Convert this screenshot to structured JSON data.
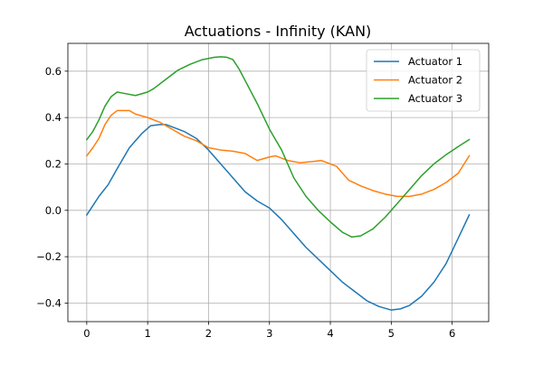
{
  "chart_data": {
    "type": "line",
    "title": "Actuations - Infinity (KAN)",
    "xlabel": "",
    "ylabel": "",
    "xlim": [
      -0.31,
      6.6
    ],
    "ylim": [
      -0.48,
      0.72
    ],
    "xticks": [
      0,
      1,
      2,
      3,
      4,
      5,
      6
    ],
    "xtick_labels": [
      "0",
      "1",
      "2",
      "3",
      "4",
      "5",
      "6"
    ],
    "yticks": [
      -0.4,
      -0.2,
      0.0,
      0.2,
      0.4,
      0.6
    ],
    "ytick_labels": [
      "−0.4",
      "−0.2",
      "0.0",
      "0.2",
      "0.4",
      "0.6"
    ],
    "grid": true,
    "legend_position": "upper-right",
    "series": [
      {
        "name": "Actuator 1",
        "color": "#1f77b4",
        "x": [
          0,
          0.1,
          0.2,
          0.35,
          0.5,
          0.7,
          0.9,
          1.05,
          1.2,
          1.3,
          1.5,
          1.6,
          1.8,
          2.0,
          2.2,
          2.4,
          2.6,
          2.8,
          3.0,
          3.2,
          3.4,
          3.6,
          3.8,
          4.0,
          4.2,
          4.4,
          4.6,
          4.8,
          5.0,
          5.15,
          5.3,
          5.5,
          5.7,
          5.9,
          6.1,
          6.28
        ],
        "y": [
          -0.02,
          0.02,
          0.06,
          0.11,
          0.18,
          0.27,
          0.33,
          0.365,
          0.37,
          0.37,
          0.35,
          0.34,
          0.31,
          0.26,
          0.2,
          0.14,
          0.08,
          0.04,
          0.01,
          -0.04,
          -0.1,
          -0.16,
          -0.21,
          -0.26,
          -0.31,
          -0.35,
          -0.39,
          -0.415,
          -0.43,
          -0.425,
          -0.41,
          -0.37,
          -0.31,
          -0.23,
          -0.12,
          -0.02
        ]
      },
      {
        "name": "Actuator 2",
        "color": "#ff7f0e",
        "x": [
          0,
          0.1,
          0.2,
          0.3,
          0.4,
          0.5,
          0.7,
          0.8,
          1.0,
          1.2,
          1.4,
          1.6,
          1.8,
          2.0,
          2.2,
          2.4,
          2.6,
          2.8,
          3.0,
          3.1,
          3.2,
          3.3,
          3.5,
          3.7,
          3.85,
          4.0,
          4.1,
          4.3,
          4.5,
          4.7,
          4.9,
          5.1,
          5.3,
          5.5,
          5.7,
          5.9,
          6.1,
          6.28
        ],
        "y": [
          0.235,
          0.27,
          0.31,
          0.37,
          0.41,
          0.43,
          0.43,
          0.415,
          0.4,
          0.38,
          0.35,
          0.32,
          0.3,
          0.27,
          0.26,
          0.255,
          0.245,
          0.215,
          0.23,
          0.235,
          0.225,
          0.215,
          0.205,
          0.21,
          0.215,
          0.2,
          0.19,
          0.13,
          0.105,
          0.085,
          0.07,
          0.06,
          0.06,
          0.07,
          0.09,
          0.12,
          0.16,
          0.235
        ]
      },
      {
        "name": "Actuator 3",
        "color": "#2ca02c",
        "x": [
          0,
          0.1,
          0.2,
          0.3,
          0.4,
          0.5,
          0.6,
          0.8,
          1.0,
          1.1,
          1.3,
          1.5,
          1.7,
          1.9,
          2.1,
          2.2,
          2.3,
          2.4,
          2.5,
          2.6,
          2.8,
          3.0,
          3.2,
          3.4,
          3.6,
          3.8,
          4.0,
          4.2,
          4.35,
          4.5,
          4.7,
          4.9,
          5.1,
          5.3,
          5.5,
          5.7,
          5.9,
          6.1,
          6.28
        ],
        "y": [
          0.305,
          0.34,
          0.39,
          0.45,
          0.49,
          0.51,
          0.505,
          0.495,
          0.51,
          0.525,
          0.565,
          0.605,
          0.63,
          0.65,
          0.66,
          0.662,
          0.66,
          0.65,
          0.61,
          0.56,
          0.46,
          0.35,
          0.26,
          0.14,
          0.06,
          0.0,
          -0.05,
          -0.095,
          -0.115,
          -0.11,
          -0.08,
          -0.03,
          0.03,
          0.09,
          0.15,
          0.2,
          0.24,
          0.275,
          0.305
        ]
      }
    ]
  }
}
